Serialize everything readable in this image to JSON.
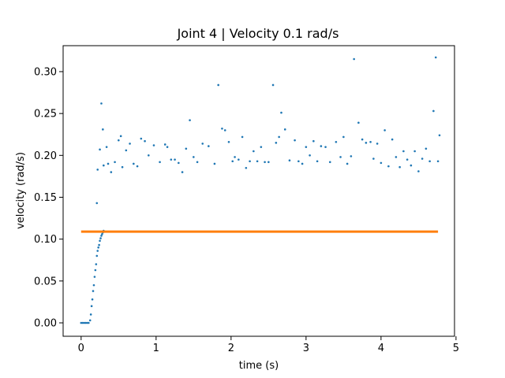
{
  "chart_data": {
    "type": "scatter",
    "title": "Joint 4 | Velocity 0.1 rad/s",
    "xlabel": "time (s)",
    "ylabel": "velocity (rad/s)",
    "xlim": [
      -0.24,
      4.98
    ],
    "ylim": [
      -0.016,
      0.331
    ],
    "xticks": [
      0,
      1,
      2,
      3,
      4,
      5
    ],
    "xtick_labels": [
      "0",
      "1",
      "2",
      "3",
      "4",
      "5"
    ],
    "yticks": [
      0.0,
      0.05,
      0.1,
      0.15,
      0.2,
      0.25,
      0.3
    ],
    "ytick_labels": [
      "0.00",
      "0.05",
      "0.10",
      "0.15",
      "0.20",
      "0.25",
      "0.30"
    ],
    "grid": false,
    "legend": "none",
    "colors": {
      "measured": "#1f77b4",
      "command": "#ff7f0e"
    },
    "series": [
      {
        "kind": "measured-scatter",
        "points": [
          [
            0.0,
            0.0
          ],
          [
            0.02,
            0.0
          ],
          [
            0.04,
            0.0
          ],
          [
            0.06,
            0.0
          ],
          [
            0.08,
            0.0
          ],
          [
            0.1,
            0.0
          ],
          [
            0.12,
            0.003
          ],
          [
            0.13,
            0.01
          ],
          [
            0.14,
            0.02
          ],
          [
            0.15,
            0.028
          ],
          [
            0.16,
            0.038
          ],
          [
            0.17,
            0.045
          ],
          [
            0.18,
            0.055
          ],
          [
            0.19,
            0.063
          ],
          [
            0.2,
            0.07
          ],
          [
            0.21,
            0.08
          ],
          [
            0.22,
            0.086
          ],
          [
            0.23,
            0.09
          ],
          [
            0.24,
            0.093
          ],
          [
            0.25,
            0.098
          ],
          [
            0.26,
            0.101
          ],
          [
            0.27,
            0.104
          ],
          [
            0.28,
            0.106
          ],
          [
            0.29,
            0.108
          ],
          [
            0.3,
            0.11
          ],
          [
            0.21,
            0.143
          ],
          [
            0.22,
            0.183
          ],
          [
            0.25,
            0.207
          ],
          [
            0.27,
            0.262
          ],
          [
            0.29,
            0.231
          ],
          [
            0.3,
            0.188
          ],
          [
            0.34,
            0.21
          ],
          [
            0.36,
            0.19
          ],
          [
            0.4,
            0.18
          ],
          [
            0.45,
            0.192
          ],
          [
            0.5,
            0.218
          ],
          [
            0.53,
            0.223
          ],
          [
            0.55,
            0.186
          ],
          [
            0.6,
            0.206
          ],
          [
            0.65,
            0.214
          ],
          [
            0.7,
            0.19
          ],
          [
            0.75,
            0.187
          ],
          [
            0.8,
            0.22
          ],
          [
            0.85,
            0.217
          ],
          [
            0.9,
            0.2
          ],
          [
            0.97,
            0.212
          ],
          [
            1.05,
            0.192
          ],
          [
            1.12,
            0.213
          ],
          [
            1.15,
            0.21
          ],
          [
            1.2,
            0.195
          ],
          [
            1.25,
            0.195
          ],
          [
            1.3,
            0.191
          ],
          [
            1.35,
            0.18
          ],
          [
            1.4,
            0.208
          ],
          [
            1.45,
            0.242
          ],
          [
            1.5,
            0.198
          ],
          [
            1.55,
            0.192
          ],
          [
            1.62,
            0.214
          ],
          [
            1.7,
            0.211
          ],
          [
            1.78,
            0.19
          ],
          [
            1.83,
            0.284
          ],
          [
            1.88,
            0.232
          ],
          [
            1.92,
            0.23
          ],
          [
            1.97,
            0.216
          ],
          [
            2.02,
            0.193
          ],
          [
            2.05,
            0.198
          ],
          [
            2.1,
            0.195
          ],
          [
            2.15,
            0.222
          ],
          [
            2.2,
            0.185
          ],
          [
            2.25,
            0.193
          ],
          [
            2.3,
            0.205
          ],
          [
            2.35,
            0.193
          ],
          [
            2.4,
            0.21
          ],
          [
            2.45,
            0.192
          ],
          [
            2.5,
            0.192
          ],
          [
            2.56,
            0.284
          ],
          [
            2.6,
            0.215
          ],
          [
            2.64,
            0.222
          ],
          [
            2.67,
            0.251
          ],
          [
            2.72,
            0.231
          ],
          [
            2.78,
            0.194
          ],
          [
            2.85,
            0.218
          ],
          [
            2.9,
            0.193
          ],
          [
            2.95,
            0.19
          ],
          [
            3.0,
            0.21
          ],
          [
            3.05,
            0.2
          ],
          [
            3.1,
            0.217
          ],
          [
            3.15,
            0.193
          ],
          [
            3.2,
            0.211
          ],
          [
            3.26,
            0.21
          ],
          [
            3.32,
            0.192
          ],
          [
            3.4,
            0.216
          ],
          [
            3.46,
            0.198
          ],
          [
            3.5,
            0.222
          ],
          [
            3.55,
            0.19
          ],
          [
            3.6,
            0.199
          ],
          [
            3.64,
            0.315
          ],
          [
            3.7,
            0.239
          ],
          [
            3.75,
            0.219
          ],
          [
            3.8,
            0.215
          ],
          [
            3.86,
            0.216
          ],
          [
            3.9,
            0.196
          ],
          [
            3.95,
            0.214
          ],
          [
            4.0,
            0.191
          ],
          [
            4.05,
            0.23
          ],
          [
            4.1,
            0.187
          ],
          [
            4.15,
            0.219
          ],
          [
            4.2,
            0.198
          ],
          [
            4.25,
            0.186
          ],
          [
            4.3,
            0.205
          ],
          [
            4.35,
            0.195
          ],
          [
            4.4,
            0.188
          ],
          [
            4.45,
            0.205
          ],
          [
            4.5,
            0.181
          ],
          [
            4.55,
            0.196
          ],
          [
            4.6,
            0.208
          ],
          [
            4.65,
            0.193
          ],
          [
            4.7,
            0.253
          ],
          [
            4.73,
            0.317
          ],
          [
            4.76,
            0.193
          ],
          [
            4.78,
            0.224
          ]
        ]
      },
      {
        "kind": "command-trend",
        "points": [
          [
            0.0,
            0.109
          ],
          [
            4.76,
            0.109
          ]
        ]
      }
    ]
  }
}
